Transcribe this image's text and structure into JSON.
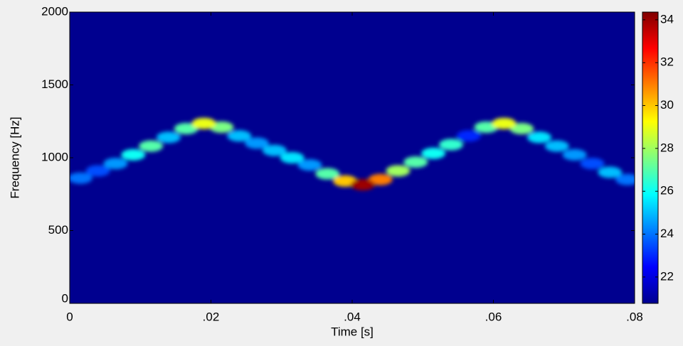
{
  "chart_data": {
    "type": "spectrogram",
    "xlabel": "Time [s]",
    "ylabel": "Frequency [Hz]",
    "x": [
      0.0015,
      0.004,
      0.0065,
      0.009,
      0.0115,
      0.014,
      0.0165,
      0.019,
      0.0215,
      0.024,
      0.0265,
      0.029,
      0.0315,
      0.034,
      0.0365,
      0.039,
      0.0415,
      0.044,
      0.0465,
      0.049,
      0.0515,
      0.054,
      0.0565,
      0.059,
      0.0615,
      0.064,
      0.0665,
      0.069,
      0.0715,
      0.074,
      0.0765,
      0.079
    ],
    "y": [
      860,
      910,
      960,
      1020,
      1080,
      1140,
      1200,
      1235,
      1210,
      1150,
      1100,
      1050,
      1000,
      950,
      890,
      840,
      815,
      850,
      910,
      970,
      1030,
      1090,
      1150,
      1210,
      1235,
      1200,
      1140,
      1080,
      1020,
      960,
      900,
      850
    ],
    "values": [
      24,
      23.5,
      24.5,
      26,
      27,
      25,
      27,
      29,
      27.5,
      25,
      24.5,
      25,
      25.5,
      24.5,
      27,
      30,
      34,
      31,
      28,
      27,
      26,
      26.5,
      23,
      27,
      29,
      27.5,
      25.5,
      25,
      24.5,
      23.5,
      25,
      24
    ],
    "xlim": [
      0,
      0.08
    ],
    "xticks": [
      0,
      {
        "value": 0.02,
        "label": ".02"
      },
      {
        "value": 0.04,
        "label": ".04"
      },
      {
        "value": 0.06,
        "label": ".06"
      },
      {
        "value": 0.08,
        "label": ".08"
      }
    ],
    "ylim": [
      0,
      2000
    ],
    "yticks": [
      0,
      500,
      1000,
      1500,
      2000
    ],
    "clim": [
      20.77,
      34.36
    ],
    "cticks": [
      22,
      24,
      26,
      28,
      30,
      32,
      34
    ],
    "colormap": "jet"
  }
}
